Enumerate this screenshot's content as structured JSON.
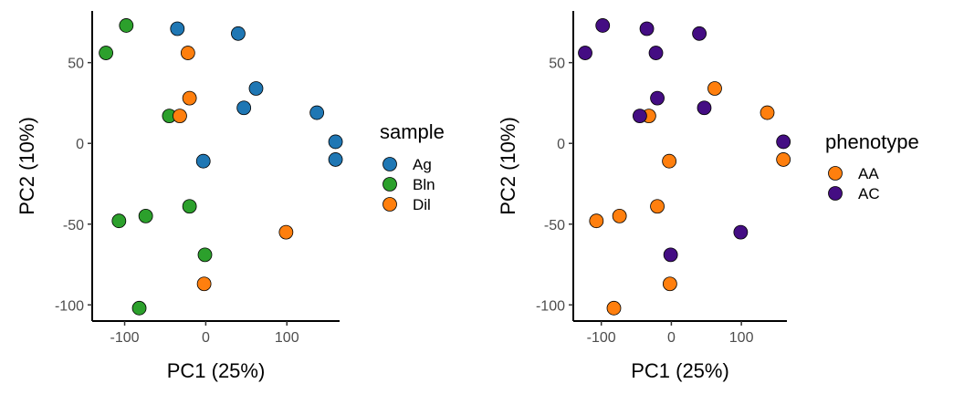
{
  "chart_data": [
    {
      "type": "scatter",
      "xlabel": "PC1 (25%)",
      "ylabel": "PC2 (10%)",
      "xlim": [
        -140,
        165
      ],
      "ylim": [
        -110,
        82
      ],
      "xticks": [
        -100,
        0,
        100
      ],
      "xtick_labels": [
        "-100",
        "0",
        "100"
      ],
      "yticks": [
        -100,
        -50,
        0,
        50
      ],
      "ytick_labels": [
        "-100",
        "-50",
        "0",
        "50"
      ],
      "grid": false,
      "legend_title": "sample",
      "legend_position": "right",
      "series": [
        {
          "name": "Ag",
          "color": "#1f77b4",
          "points": [
            [
              -35,
              71
            ],
            [
              40,
              68
            ],
            [
              62,
              34
            ],
            [
              47,
              22
            ],
            [
              137,
              19
            ],
            [
              160,
              1
            ],
            [
              160,
              -10
            ],
            [
              -3,
              -11
            ]
          ]
        },
        {
          "name": "Bln",
          "color": "#2ca02c",
          "points": [
            [
              -98,
              73
            ],
            [
              -123,
              56
            ],
            [
              -45,
              17
            ],
            [
              -107,
              -48
            ],
            [
              -74,
              -45
            ],
            [
              -20,
              -39
            ],
            [
              -1,
              -69
            ],
            [
              -82,
              -102
            ]
          ]
        },
        {
          "name": "Dil",
          "color": "#ff7f0e",
          "points": [
            [
              -22,
              56
            ],
            [
              -20,
              28
            ],
            [
              -32,
              17
            ],
            [
              99,
              -55
            ],
            [
              -2,
              -87
            ]
          ]
        }
      ]
    },
    {
      "type": "scatter",
      "xlabel": "PC1 (25%)",
      "ylabel": "PC2 (10%)",
      "xlim": [
        -140,
        165
      ],
      "ylim": [
        -110,
        82
      ],
      "xticks": [
        -100,
        0,
        100
      ],
      "xtick_labels": [
        "-100",
        "0",
        "100"
      ],
      "yticks": [
        -100,
        -50,
        0,
        50
      ],
      "ytick_labels": [
        "-100",
        "-50",
        "0",
        "50"
      ],
      "grid": false,
      "legend_title": "phenotype",
      "legend_position": "right",
      "series": [
        {
          "name": "AA",
          "color": "#ff7f0e",
          "points": [
            [
              62,
              34
            ],
            [
              137,
              19
            ],
            [
              160,
              -10
            ],
            [
              -3,
              -11
            ],
            [
              -107,
              -48
            ],
            [
              -74,
              -45
            ],
            [
              -20,
              -39
            ],
            [
              -2,
              -87
            ],
            [
              -82,
              -102
            ],
            [
              -32,
              17
            ]
          ]
        },
        {
          "name": "AC",
          "color": "#440d83",
          "points": [
            [
              -98,
              73
            ],
            [
              -123,
              56
            ],
            [
              -35,
              71
            ],
            [
              -22,
              56
            ],
            [
              40,
              68
            ],
            [
              -20,
              28
            ],
            [
              47,
              22
            ],
            [
              -45,
              17
            ],
            [
              160,
              1
            ],
            [
              99,
              -55
            ],
            [
              -1,
              -69
            ]
          ]
        }
      ]
    }
  ]
}
